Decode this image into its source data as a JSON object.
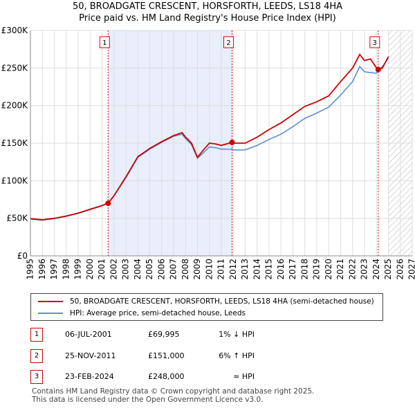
{
  "chart_data": {
    "type": "line",
    "title": "50, BROADGATE CRESCENT, HORSFORTH, LEEDS, LS18 4HA",
    "subtitle": "Price paid vs. HM Land Registry's House Price Index (HPI)",
    "xlim": [
      1995,
      2027
    ],
    "ylim": [
      0,
      300000
    ],
    "x_ticks": [
      1995,
      1996,
      1997,
      1998,
      1999,
      2000,
      2001,
      2002,
      2003,
      2004,
      2005,
      2006,
      2007,
      2008,
      2009,
      2010,
      2011,
      2012,
      2013,
      2014,
      2015,
      2016,
      2017,
      2018,
      2019,
      2020,
      2021,
      2022,
      2023,
      2024,
      2025,
      2026,
      2027
    ],
    "y_ticks": [
      0,
      50000,
      100000,
      150000,
      200000,
      250000,
      300000
    ],
    "y_tick_labels": [
      "£0",
      "£50K",
      "£100K",
      "£150K",
      "£200K",
      "£250K",
      "£300K"
    ],
    "shaded_periods": [
      [
        2001.51,
        2011.9
      ]
    ],
    "future_hatch_from": 2025.0,
    "series": [
      {
        "name": "50, BROADGATE CRESCENT, HORSFORTH, LEEDS, LS18 4HA (semi-detached house)",
        "color": "#cc0000",
        "points": [
          [
            1995,
            49500
          ],
          [
            1996,
            48000
          ],
          [
            1997,
            50000
          ],
          [
            1998,
            53000
          ],
          [
            1999,
            57000
          ],
          [
            2000,
            62000
          ],
          [
            2001,
            67000
          ],
          [
            2001.51,
            69995
          ],
          [
            2002,
            80000
          ],
          [
            2003,
            105000
          ],
          [
            2004,
            132000
          ],
          [
            2005,
            143000
          ],
          [
            2006,
            152000
          ],
          [
            2007,
            160000
          ],
          [
            2007.7,
            164000
          ],
          [
            2008,
            158000
          ],
          [
            2008.5,
            150000
          ],
          [
            2009,
            131000
          ],
          [
            2009.5,
            141000
          ],
          [
            2010,
            150000
          ],
          [
            2010.5,
            149000
          ],
          [
            2011,
            147000
          ],
          [
            2011.9,
            151000
          ],
          [
            2012,
            150000
          ],
          [
            2013,
            150000
          ],
          [
            2014,
            158000
          ],
          [
            2015,
            168000
          ],
          [
            2016,
            177000
          ],
          [
            2017,
            188000
          ],
          [
            2018,
            199000
          ],
          [
            2019,
            205000
          ],
          [
            2020,
            213000
          ],
          [
            2021,
            232000
          ],
          [
            2022,
            250000
          ],
          [
            2022.6,
            268000
          ],
          [
            2023,
            260000
          ],
          [
            2023.5,
            262000
          ],
          [
            2024,
            250000
          ],
          [
            2024.15,
            248000
          ],
          [
            2024.5,
            250000
          ],
          [
            2025,
            265000
          ]
        ]
      },
      {
        "name": "HPI: Average price, semi-detached house, Leeds",
        "color": "#5b8fd0",
        "points": [
          [
            1995,
            49000
          ],
          [
            1996,
            47500
          ],
          [
            1997,
            49500
          ],
          [
            1998,
            52500
          ],
          [
            1999,
            56500
          ],
          [
            2000,
            61500
          ],
          [
            2001,
            66500
          ],
          [
            2001.51,
            70500
          ],
          [
            2002,
            80000
          ],
          [
            2003,
            104000
          ],
          [
            2004,
            131000
          ],
          [
            2005,
            142000
          ],
          [
            2006,
            151000
          ],
          [
            2007,
            159000
          ],
          [
            2007.7,
            162000
          ],
          [
            2008,
            156000
          ],
          [
            2008.5,
            148000
          ],
          [
            2009,
            130000
          ],
          [
            2009.5,
            137000
          ],
          [
            2010,
            145000
          ],
          [
            2010.5,
            144000
          ],
          [
            2011,
            142000
          ],
          [
            2011.9,
            142000
          ],
          [
            2012,
            141000
          ],
          [
            2013,
            141000
          ],
          [
            2014,
            147000
          ],
          [
            2015,
            155000
          ],
          [
            2016,
            162000
          ],
          [
            2017,
            172000
          ],
          [
            2018,
            183000
          ],
          [
            2019,
            190000
          ],
          [
            2020,
            198000
          ],
          [
            2021,
            214000
          ],
          [
            2022,
            232000
          ],
          [
            2022.6,
            252000
          ],
          [
            2023,
            245000
          ],
          [
            2023.5,
            244000
          ],
          [
            2024,
            243000
          ],
          [
            2024.15,
            248000
          ],
          [
            2024.5,
            252000
          ],
          [
            2025,
            263000
          ]
        ]
      }
    ],
    "sale_markers": [
      {
        "label": "1",
        "x": 2001.51,
        "value": 69995
      },
      {
        "label": "2",
        "x": 2011.9,
        "value": 151000
      },
      {
        "label": "3",
        "x": 2024.15,
        "value": 248000
      }
    ]
  },
  "legend": {
    "property_label": "50, BROADGATE CRESCENT, HORSFORTH, LEEDS, LS18 4HA (semi-detached house)",
    "hpi_label": "HPI: Average price, semi-detached house, Leeds"
  },
  "sales": [
    {
      "num": "1",
      "date": "06-JUL-2001",
      "price": "£69,995",
      "hpi": "1% ↓ HPI"
    },
    {
      "num": "2",
      "date": "25-NOV-2011",
      "price": "£151,000",
      "hpi": "6% ↑ HPI"
    },
    {
      "num": "3",
      "date": "23-FEB-2024",
      "price": "£248,000",
      "hpi": "≈ HPI"
    }
  ],
  "footer": {
    "line1": "Contains HM Land Registry data © Crown copyright and database right 2025.",
    "line2": "This data is licensed under the Open Government Licence v3.0."
  }
}
